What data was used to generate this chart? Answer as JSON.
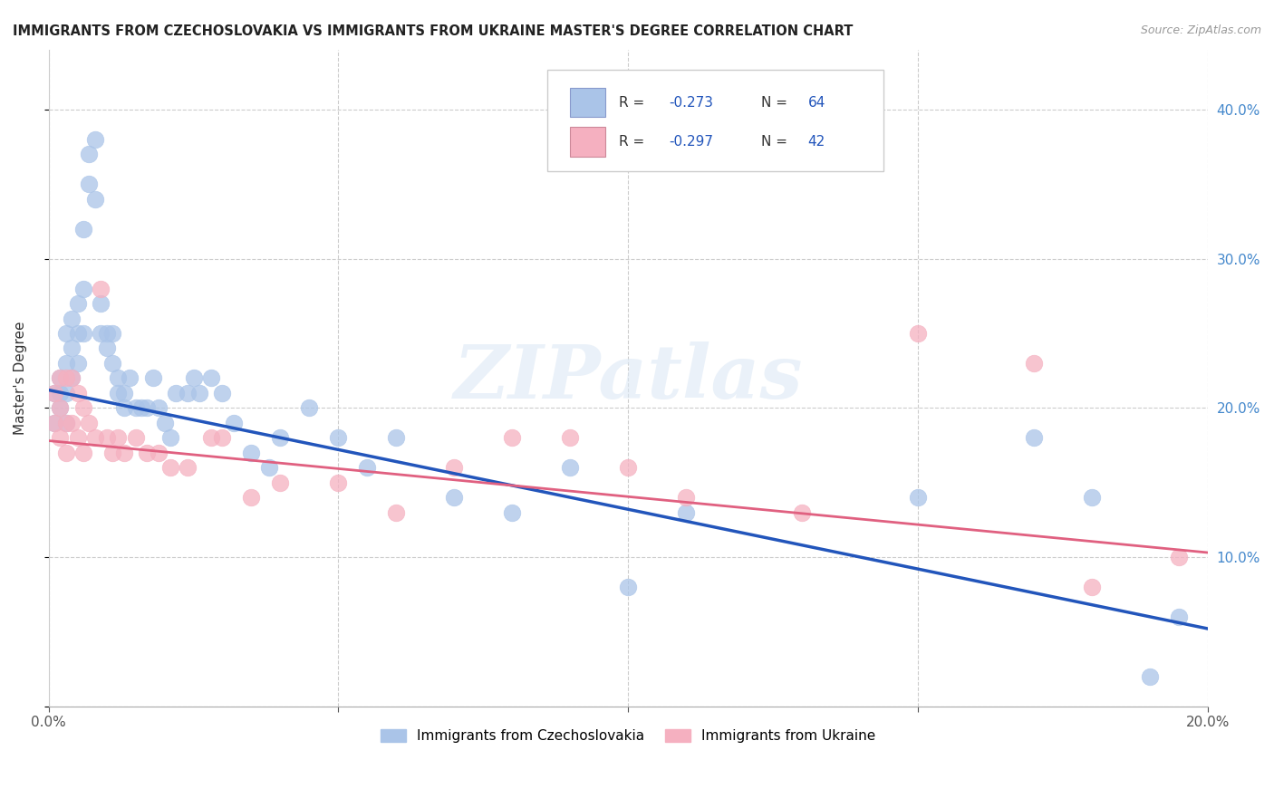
{
  "title": "IMMIGRANTS FROM CZECHOSLOVAKIA VS IMMIGRANTS FROM UKRAINE MASTER'S DEGREE CORRELATION CHART",
  "source": "Source: ZipAtlas.com",
  "ylabel": "Master's Degree",
  "xlim": [
    0.0,
    0.2
  ],
  "ylim": [
    0.0,
    0.44
  ],
  "xtick_positions": [
    0.0,
    0.05,
    0.1,
    0.15,
    0.2
  ],
  "xtick_labels": [
    "0.0%",
    "",
    "",
    "",
    "20.0%"
  ],
  "ytick_positions": [
    0.0,
    0.1,
    0.2,
    0.3,
    0.4
  ],
  "ytick_labels": [
    "",
    "10.0%",
    "20.0%",
    "30.0%",
    "40.0%"
  ],
  "watermark": "ZIPatlas",
  "blue_color": "#aac4e8",
  "pink_color": "#f5b0c0",
  "blue_line_color": "#2255bb",
  "pink_line_color": "#e06080",
  "legend_label_blue": "Immigrants from Czechoslovakia",
  "legend_label_pink": "Immigrants from Ukraine",
  "legend_R_blue": "R = -0.273",
  "legend_N_blue": "N = 64",
  "legend_R_pink": "R = -0.297",
  "legend_N_pink": "N = 42",
  "blue_x": [
    0.001,
    0.001,
    0.002,
    0.002,
    0.002,
    0.003,
    0.003,
    0.003,
    0.003,
    0.004,
    0.004,
    0.004,
    0.005,
    0.005,
    0.005,
    0.006,
    0.006,
    0.006,
    0.007,
    0.007,
    0.008,
    0.008,
    0.009,
    0.009,
    0.01,
    0.01,
    0.011,
    0.011,
    0.012,
    0.012,
    0.013,
    0.013,
    0.014,
    0.015,
    0.016,
    0.017,
    0.018,
    0.019,
    0.02,
    0.021,
    0.022,
    0.024,
    0.025,
    0.026,
    0.028,
    0.03,
    0.032,
    0.035,
    0.038,
    0.04,
    0.045,
    0.05,
    0.055,
    0.06,
    0.07,
    0.08,
    0.09,
    0.1,
    0.11,
    0.15,
    0.17,
    0.18,
    0.19,
    0.195
  ],
  "blue_y": [
    0.21,
    0.19,
    0.22,
    0.2,
    0.21,
    0.25,
    0.23,
    0.21,
    0.19,
    0.26,
    0.24,
    0.22,
    0.27,
    0.25,
    0.23,
    0.32,
    0.28,
    0.25,
    0.37,
    0.35,
    0.38,
    0.34,
    0.27,
    0.25,
    0.25,
    0.24,
    0.25,
    0.23,
    0.22,
    0.21,
    0.21,
    0.2,
    0.22,
    0.2,
    0.2,
    0.2,
    0.22,
    0.2,
    0.19,
    0.18,
    0.21,
    0.21,
    0.22,
    0.21,
    0.22,
    0.21,
    0.19,
    0.17,
    0.16,
    0.18,
    0.2,
    0.18,
    0.16,
    0.18,
    0.14,
    0.13,
    0.16,
    0.08,
    0.13,
    0.14,
    0.18,
    0.14,
    0.02,
    0.06
  ],
  "pink_x": [
    0.001,
    0.001,
    0.002,
    0.002,
    0.002,
    0.003,
    0.003,
    0.003,
    0.004,
    0.004,
    0.005,
    0.005,
    0.006,
    0.006,
    0.007,
    0.008,
    0.009,
    0.01,
    0.011,
    0.012,
    0.013,
    0.015,
    0.017,
    0.019,
    0.021,
    0.024,
    0.028,
    0.03,
    0.035,
    0.04,
    0.05,
    0.06,
    0.07,
    0.08,
    0.09,
    0.1,
    0.11,
    0.13,
    0.15,
    0.17,
    0.18,
    0.195
  ],
  "pink_y": [
    0.19,
    0.21,
    0.22,
    0.2,
    0.18,
    0.22,
    0.19,
    0.17,
    0.22,
    0.19,
    0.21,
    0.18,
    0.2,
    0.17,
    0.19,
    0.18,
    0.28,
    0.18,
    0.17,
    0.18,
    0.17,
    0.18,
    0.17,
    0.17,
    0.16,
    0.16,
    0.18,
    0.18,
    0.14,
    0.15,
    0.15,
    0.13,
    0.16,
    0.18,
    0.18,
    0.16,
    0.14,
    0.13,
    0.25,
    0.23,
    0.08,
    0.1
  ],
  "blue_line_x0": 0.0,
  "blue_line_y0": 0.212,
  "blue_line_x1": 0.2,
  "blue_line_y1": 0.052,
  "pink_line_x0": 0.0,
  "pink_line_y0": 0.178,
  "pink_line_x1": 0.2,
  "pink_line_y1": 0.103
}
